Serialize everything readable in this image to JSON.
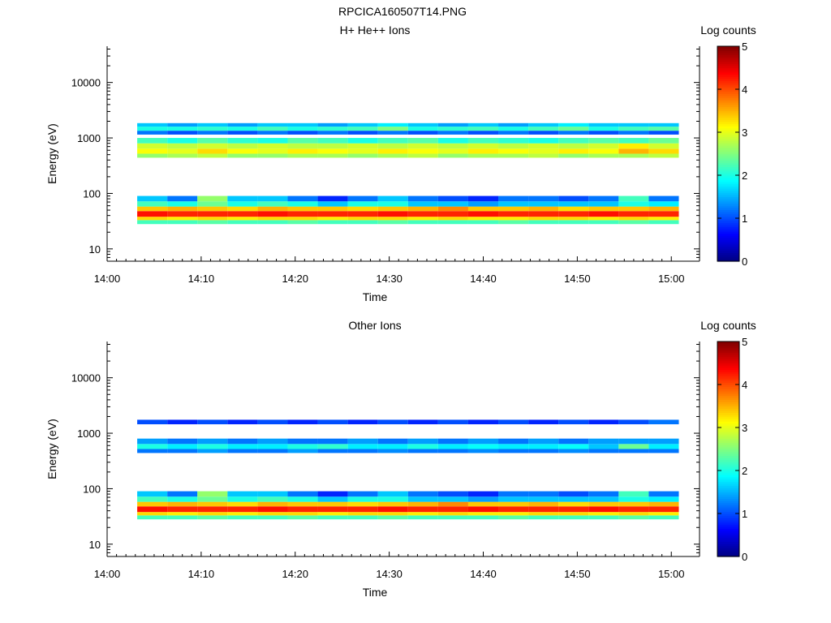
{
  "figure_title": "RPCICA160507T14.PNG",
  "chart_data": [
    {
      "type": "heatmap",
      "title": "H+ He++ Ions",
      "xlabel": "Time",
      "ylabel": "Energy (eV)",
      "x_ticks": [
        "14:00",
        "14:10",
        "14:20",
        "14:30",
        "14:40",
        "14:50",
        "15:00"
      ],
      "x_range_minutes": [
        0,
        63
      ],
      "y_scale": "log",
      "y_ticks": [
        "10",
        "100",
        "1000",
        "10000"
      ],
      "y_range": [
        6,
        45000
      ],
      "colorbar_label": "Log counts",
      "colorbar_ticks": [
        "0",
        "1",
        "2",
        "3",
        "4",
        "5"
      ],
      "colorbar_range": [
        0,
        5
      ],
      "time_bins_minutes": [
        3.2,
        6.4,
        9.6,
        12.8,
        16,
        19.2,
        22.4,
        25.6,
        28.8,
        32,
        35.2,
        38.4,
        41.6,
        44.8,
        48,
        51.2,
        54.4,
        57.6,
        60.8
      ],
      "bands": [
        {
          "e_min": 28,
          "e_max": 33,
          "levels": [
            2.2,
            2.2,
            2.3,
            2.2,
            2.2,
            2.3,
            2.2,
            2.2,
            2.3,
            2.2,
            2.2,
            2.2,
            2.3,
            2.2,
            2.2,
            2.2,
            2.3,
            2.2
          ]
        },
        {
          "e_min": 33,
          "e_max": 38,
          "levels": [
            3.3,
            3.2,
            3.3,
            3.2,
            3.3,
            3.3,
            3.2,
            3.3,
            3.3,
            3.2,
            3.3,
            3.2,
            3.2,
            3.3,
            3.3,
            3.2,
            3.3,
            3.2
          ]
        },
        {
          "e_min": 38,
          "e_max": 48,
          "levels": [
            4.3,
            4.2,
            4.2,
            4.2,
            4.3,
            4.2,
            4.2,
            4.2,
            4.3,
            4.2,
            4.2,
            4.3,
            4.2,
            4.2,
            4.2,
            4.3,
            4.2,
            4.2
          ]
        },
        {
          "e_min": 48,
          "e_max": 58,
          "levels": [
            3.4,
            3.5,
            3.4,
            3.3,
            3.5,
            3.4,
            3.4,
            3.3,
            3.4,
            3.5,
            3.7,
            3.4,
            3.4,
            3.5,
            3.3,
            3.4,
            3.4,
            3.5
          ]
        },
        {
          "e_min": 58,
          "e_max": 72,
          "levels": [
            2.2,
            2.0,
            2.4,
            2.0,
            2.2,
            2.0,
            1.6,
            2.0,
            2.0,
            1.6,
            1.6,
            1.4,
            1.6,
            1.6,
            1.6,
            1.6,
            2.0,
            1.8
          ]
        },
        {
          "e_min": 72,
          "e_max": 90,
          "levels": [
            1.6,
            1.2,
            2.6,
            1.6,
            1.6,
            1.2,
            0.8,
            1.2,
            1.6,
            1.2,
            1.0,
            0.8,
            1.2,
            1.2,
            1.0,
            1.2,
            2.2,
            1.2
          ]
        },
        {
          "e_min": 440,
          "e_max": 520,
          "levels": [
            2.6,
            2.7,
            2.8,
            2.6,
            2.6,
            2.7,
            2.7,
            2.6,
            2.7,
            2.8,
            2.6,
            2.7,
            2.7,
            2.8,
            2.6,
            2.7,
            2.7,
            2.8
          ]
        },
        {
          "e_min": 520,
          "e_max": 640,
          "levels": [
            3.1,
            3.0,
            3.3,
            3.1,
            3.0,
            3.2,
            3.1,
            3.0,
            3.2,
            3.1,
            3.0,
            3.2,
            3.1,
            3.0,
            3.2,
            3.1,
            3.5,
            3.3
          ]
        },
        {
          "e_min": 640,
          "e_max": 800,
          "levels": [
            2.9,
            2.8,
            2.9,
            2.8,
            2.9,
            2.8,
            2.8,
            2.9,
            2.8,
            2.9,
            2.8,
            2.9,
            2.8,
            2.9,
            2.8,
            2.9,
            3.2,
            2.9
          ]
        },
        {
          "e_min": 800,
          "e_max": 1000,
          "levels": [
            2.2,
            2.0,
            2.3,
            2.1,
            2.0,
            2.3,
            2.2,
            2.0,
            2.2,
            2.3,
            2.0,
            2.2,
            2.1,
            2.0,
            2.2,
            2.3,
            2.2,
            2.4
          ]
        },
        {
          "e_min": 1150,
          "e_max": 1350,
          "levels": [
            1.2,
            1.0,
            1.2,
            1.0,
            1.2,
            1.0,
            1.2,
            1.0,
            1.2,
            1.0,
            1.2,
            1.0,
            1.2,
            1.0,
            1.2,
            1.0,
            1.2,
            1.0
          ]
        },
        {
          "e_min": 1350,
          "e_max": 1600,
          "levels": [
            2.0,
            2.0,
            2.1,
            2.0,
            2.2,
            2.0,
            2.1,
            2.2,
            2.5,
            2.0,
            2.1,
            2.2,
            2.0,
            2.2,
            2.4,
            2.0,
            2.2,
            2.3
          ]
        },
        {
          "e_min": 1600,
          "e_max": 1850,
          "levels": [
            1.6,
            1.4,
            1.6,
            1.4,
            1.6,
            1.6,
            1.4,
            1.6,
            1.8,
            1.6,
            1.4,
            1.6,
            1.4,
            1.6,
            1.8,
            1.6,
            1.6,
            1.6
          ]
        }
      ]
    },
    {
      "type": "heatmap",
      "title": "Other Ions",
      "xlabel": "Time",
      "ylabel": "Energy (eV)",
      "x_ticks": [
        "14:00",
        "14:10",
        "14:20",
        "14:30",
        "14:40",
        "14:50",
        "15:00"
      ],
      "x_range_minutes": [
        0,
        63
      ],
      "y_scale": "log",
      "y_ticks": [
        "10",
        "100",
        "1000",
        "10000"
      ],
      "y_range": [
        6,
        45000
      ],
      "colorbar_label": "Log counts",
      "colorbar_ticks": [
        "0",
        "1",
        "2",
        "3",
        "4",
        "5"
      ],
      "colorbar_range": [
        0,
        5
      ],
      "time_bins_minutes": [
        3.2,
        6.4,
        9.6,
        12.8,
        16,
        19.2,
        22.4,
        25.6,
        28.8,
        32,
        35.2,
        38.4,
        41.6,
        44.8,
        48,
        51.2,
        54.4,
        57.6,
        60.8
      ],
      "bands": [
        {
          "e_min": 28,
          "e_max": 33,
          "levels": [
            2.2,
            2.2,
            2.3,
            2.2,
            2.2,
            2.3,
            2.2,
            2.2,
            2.3,
            2.2,
            2.2,
            2.2,
            2.3,
            2.2,
            2.2,
            2.2,
            2.3,
            2.2
          ]
        },
        {
          "e_min": 33,
          "e_max": 38,
          "levels": [
            3.3,
            3.2,
            3.3,
            3.2,
            3.3,
            3.3,
            3.2,
            3.3,
            3.3,
            3.2,
            3.3,
            3.2,
            3.2,
            3.3,
            3.3,
            3.2,
            3.3,
            3.2
          ]
        },
        {
          "e_min": 38,
          "e_max": 48,
          "levels": [
            4.3,
            4.2,
            4.2,
            4.2,
            4.3,
            4.2,
            4.2,
            4.2,
            4.3,
            4.2,
            4.2,
            4.3,
            4.2,
            4.2,
            4.2,
            4.3,
            4.2,
            4.2
          ]
        },
        {
          "e_min": 48,
          "e_max": 58,
          "levels": [
            3.4,
            3.5,
            3.4,
            3.3,
            3.5,
            3.4,
            3.4,
            3.3,
            3.4,
            3.5,
            3.7,
            3.4,
            3.4,
            3.5,
            3.3,
            3.4,
            3.4,
            3.5
          ]
        },
        {
          "e_min": 58,
          "e_max": 72,
          "levels": [
            2.2,
            2.0,
            2.4,
            2.0,
            2.2,
            2.0,
            1.6,
            2.0,
            2.0,
            1.6,
            1.6,
            1.4,
            1.6,
            1.6,
            1.6,
            1.6,
            2.0,
            1.8
          ]
        },
        {
          "e_min": 72,
          "e_max": 90,
          "levels": [
            1.6,
            1.2,
            2.6,
            1.6,
            1.6,
            1.2,
            0.8,
            1.2,
            1.6,
            1.2,
            1.0,
            0.8,
            1.2,
            1.2,
            1.0,
            1.2,
            2.2,
            1.2
          ]
        },
        {
          "e_min": 440,
          "e_max": 520,
          "levels": [
            1.2,
            1.2,
            1.4,
            1.2,
            1.2,
            1.4,
            1.2,
            1.2,
            1.3,
            1.2,
            1.2,
            1.3,
            1.2,
            1.2,
            1.3,
            1.2,
            1.2,
            1.2
          ]
        },
        {
          "e_min": 520,
          "e_max": 640,
          "levels": [
            2.0,
            1.8,
            2.0,
            1.8,
            1.8,
            2.0,
            2.1,
            1.8,
            1.8,
            2.0,
            1.8,
            1.9,
            1.8,
            1.8,
            1.9,
            1.6,
            2.4,
            1.8
          ]
        },
        {
          "e_min": 640,
          "e_max": 800,
          "levels": [
            1.4,
            1.2,
            1.4,
            1.2,
            1.4,
            1.2,
            1.2,
            1.4,
            1.2,
            1.4,
            1.2,
            1.4,
            1.2,
            1.4,
            1.2,
            1.4,
            1.4,
            1.4
          ]
        },
        {
          "e_min": 1450,
          "e_max": 1750,
          "levels": [
            1.0,
            0.8,
            1.0,
            0.8,
            1.0,
            0.8,
            1.0,
            0.8,
            1.0,
            0.8,
            1.0,
            0.8,
            1.0,
            0.8,
            1.0,
            0.8,
            1.0,
            1.2
          ]
        }
      ]
    }
  ]
}
